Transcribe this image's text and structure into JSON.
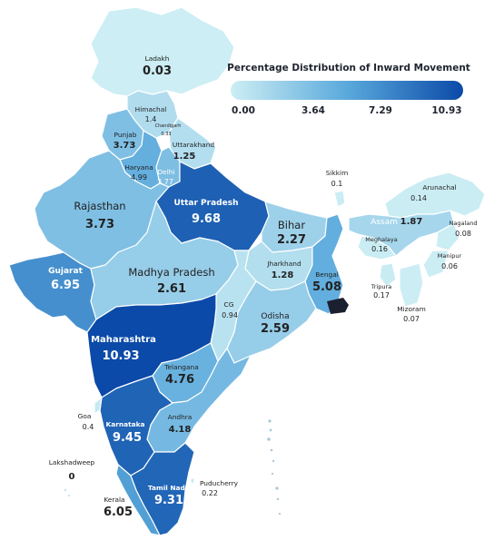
{
  "legend": {
    "title": "Percentage Distribution of Inward Movement",
    "ticks": [
      "0.00",
      "3.64",
      "7.29",
      "10.93"
    ],
    "min": 0,
    "max": 10.93,
    "color_low": "#cdeef4",
    "color_high": "#0b4aa8"
  },
  "regions": [
    {
      "key": "ladakh",
      "name": "Ladakh",
      "value": "0.03",
      "v": 0.03
    },
    {
      "key": "himachal",
      "name": "Himachal",
      "value": "1.4",
      "v": 1.4
    },
    {
      "key": "chandigarh",
      "name": "Chandigarh",
      "value": "0.33",
      "v": 0.33
    },
    {
      "key": "punjab",
      "name": "Punjab",
      "value": "3.73",
      "v": 3.73
    },
    {
      "key": "uttarakhand",
      "name": "Uttarakhand",
      "value": "1.25",
      "v": 1.25
    },
    {
      "key": "haryana",
      "name": "Haryana",
      "value": "4.99",
      "v": 4.99
    },
    {
      "key": "delhi",
      "name": "Delhi",
      "value": "3.77",
      "v": 3.77
    },
    {
      "key": "rajasthan",
      "name": "Rajasthan",
      "value": "3.73",
      "v": 3.73
    },
    {
      "key": "up",
      "name": "Uttar Pradesh",
      "value": "9.68",
      "v": 9.68
    },
    {
      "key": "bihar",
      "name": "Bihar",
      "value": "2.27",
      "v": 2.27
    },
    {
      "key": "sikkim",
      "name": "Sikkim",
      "value": "0.1",
      "v": 0.1
    },
    {
      "key": "arunachal",
      "name": "Arunachal",
      "value": "0.14",
      "v": 0.14
    },
    {
      "key": "assam",
      "name": "Assam",
      "value": "1.87",
      "v": 1.87
    },
    {
      "key": "meghalaya",
      "name": "Meghalaya",
      "value": "0.16",
      "v": 0.16
    },
    {
      "key": "nagaland",
      "name": "Nagaland",
      "value": "0.08",
      "v": 0.08
    },
    {
      "key": "manipur",
      "name": "Manipur",
      "value": "0.06",
      "v": 0.06
    },
    {
      "key": "tripura",
      "name": "Tripura",
      "value": "0.17",
      "v": 0.17
    },
    {
      "key": "mizoram",
      "name": "Mizoram",
      "value": "0.07",
      "v": 0.07
    },
    {
      "key": "gujarat",
      "name": "Gujarat",
      "value": "6.95",
      "v": 6.95
    },
    {
      "key": "mp",
      "name": "Madhya Pradesh",
      "value": "2.61",
      "v": 2.61
    },
    {
      "key": "jharkhand",
      "name": "Jharkhand",
      "value": "1.28",
      "v": 1.28
    },
    {
      "key": "bengal",
      "name": "Bengal",
      "value": "5.08",
      "v": 5.08
    },
    {
      "key": "cg",
      "name": "CG",
      "value": "0.94",
      "v": 0.94
    },
    {
      "key": "odisha",
      "name": "Odisha",
      "value": "2.59",
      "v": 2.59
    },
    {
      "key": "maharashtra",
      "name": "Maharashtra",
      "value": "10.93",
      "v": 10.93
    },
    {
      "key": "telangana",
      "name": "Telangana",
      "value": "4.76",
      "v": 4.76
    },
    {
      "key": "goa",
      "name": "Goa",
      "value": "0.4",
      "v": 0.4
    },
    {
      "key": "karnataka",
      "name": "Karnataka",
      "value": "9.45",
      "v": 9.45
    },
    {
      "key": "andhra",
      "name": "Andhra",
      "value": "4.18",
      "v": 4.18
    },
    {
      "key": "lakshadweep",
      "name": "Lakshadweep",
      "value": "0",
      "v": 0
    },
    {
      "key": "tn",
      "name": "Tamil Nadu",
      "value": "9.31",
      "v": 9.31
    },
    {
      "key": "puducherry",
      "name": "Puducherry",
      "value": "0.22",
      "v": 0.22
    },
    {
      "key": "kerala",
      "name": "Kerala",
      "value": "6.05",
      "v": 6.05
    }
  ]
}
